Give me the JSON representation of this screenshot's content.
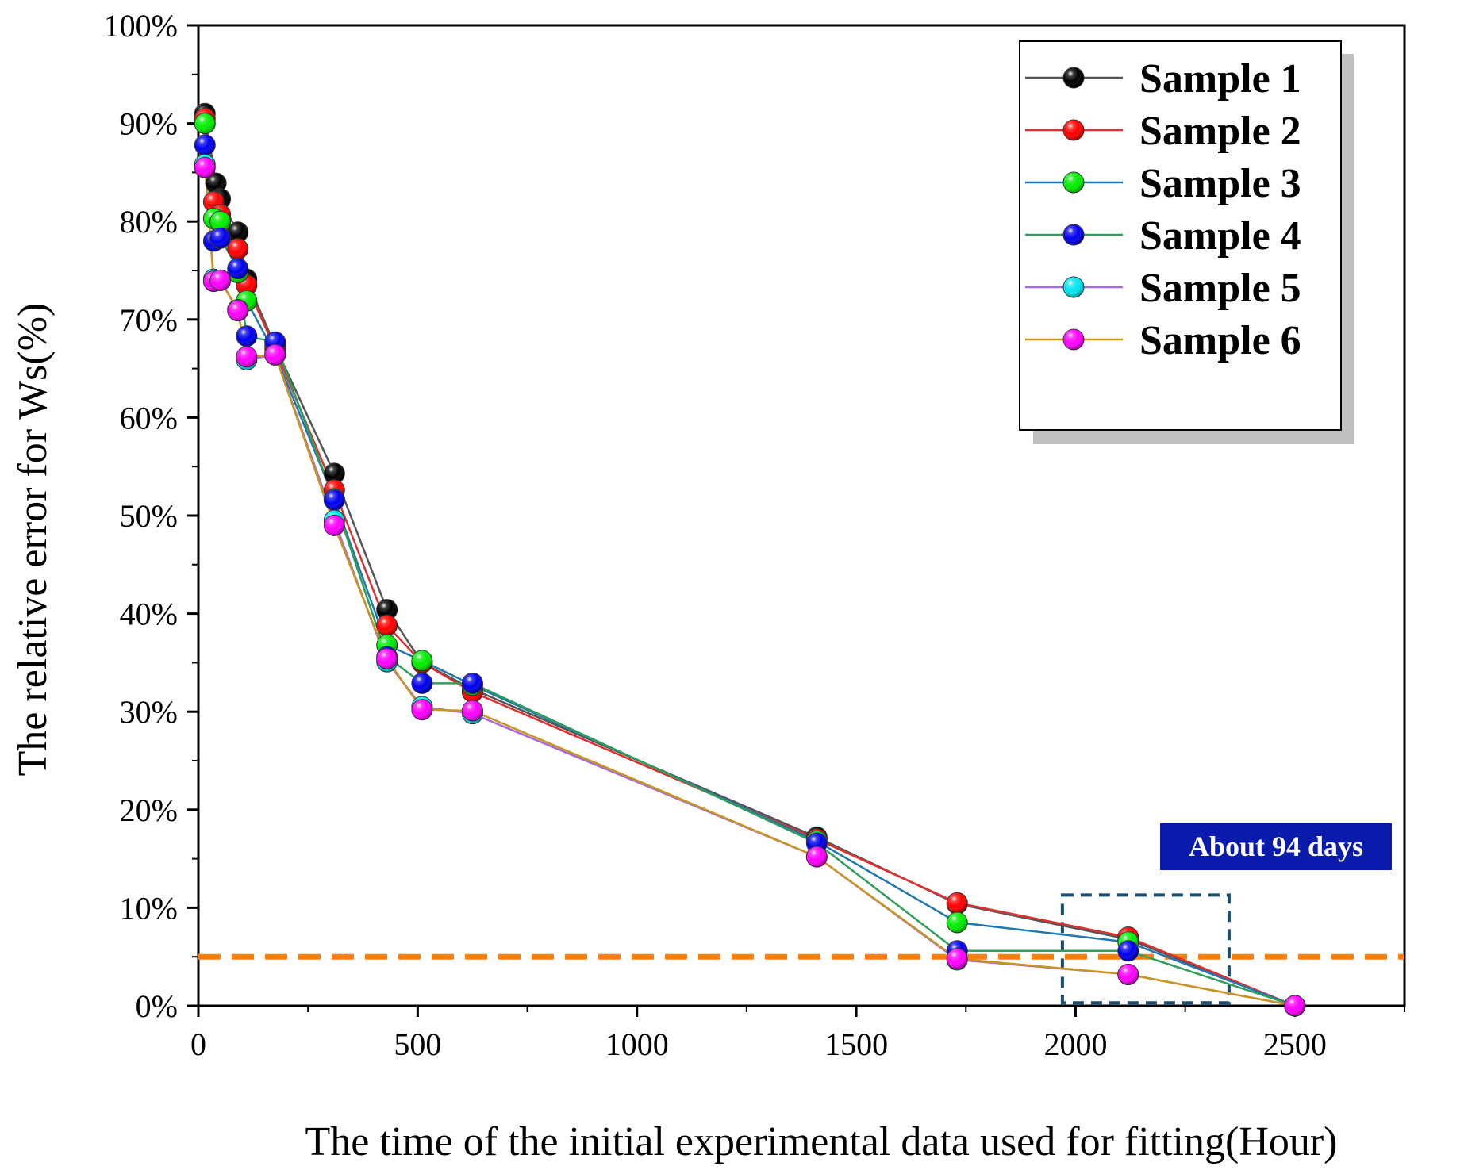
{
  "chart_data": {
    "type": "line",
    "title": "",
    "xlabel": "The time of the initial experimental data used for fitting(Hour)",
    "ylabel": "The relative error for Ws(%)",
    "xlim": [
      0,
      2750
    ],
    "ylim": [
      0,
      100
    ],
    "xticks": [
      0,
      500,
      1000,
      1500,
      2000,
      2500
    ],
    "xtick_labels": [
      "0",
      "500",
      "1000",
      "1500",
      "2000",
      "2500"
    ],
    "yticks": [
      0,
      10,
      20,
      30,
      40,
      50,
      60,
      70,
      80,
      90,
      100
    ],
    "ytick_labels": [
      "0%",
      "10%",
      "20%",
      "30%",
      "40%",
      "50%",
      "60%",
      "70%",
      "80%",
      "90%",
      "100%"
    ],
    "legend_position": "top-right",
    "grid": false,
    "threshold_line": {
      "y": 5,
      "color": "#FF7F0E",
      "style": "dashed"
    },
    "annotation": {
      "text": "About 94 days",
      "color": "#0A1AAA",
      "box_x_range": [
        1970,
        2350
      ],
      "box_y_range": [
        0.3,
        11.3
      ]
    },
    "series": [
      {
        "name": "Sample 1",
        "marker_color": "#000000",
        "line_color": "#555555",
        "x": [
          15,
          40,
          50,
          90,
          110,
          175,
          310,
          430,
          510,
          625,
          1410,
          1730,
          2120,
          2500
        ],
        "y": [
          91.0,
          83.9,
          82.3,
          78.9,
          74.1,
          67.3,
          54.3,
          40.4,
          35.0,
          32.3,
          17.2,
          10.4,
          6.8,
          0.0
        ]
      },
      {
        "name": "Sample 2",
        "marker_color": "#FF0000",
        "line_color": "#E03030",
        "x": [
          15,
          35,
          50,
          90,
          110,
          175,
          310,
          430,
          510,
          625,
          1410,
          1730,
          2120,
          2500
        ],
        "y": [
          90.5,
          82.0,
          80.7,
          77.2,
          73.5,
          67.0,
          52.6,
          38.8,
          35.0,
          32.0,
          17.0,
          10.5,
          7.0,
          0.0
        ]
      },
      {
        "name": "Sample 3",
        "marker_color": "#00EE00",
        "line_color": "#1F77B4",
        "x": [
          15,
          35,
          50,
          90,
          110,
          175,
          310,
          430,
          510,
          625,
          1410,
          1730,
          2120,
          2500
        ],
        "y": [
          90.0,
          80.3,
          80.0,
          74.8,
          71.9,
          66.5,
          51.7,
          36.8,
          35.2,
          32.7,
          16.8,
          8.5,
          6.5,
          0.0
        ]
      },
      {
        "name": "Sample 4",
        "marker_color": "#0000EE",
        "line_color": "#2E9E5A",
        "x": [
          15,
          35,
          50,
          90,
          110,
          175,
          310,
          430,
          510,
          625,
          1410,
          1730,
          2120,
          2500
        ],
        "y": [
          87.8,
          78.0,
          78.3,
          75.2,
          68.3,
          67.7,
          51.6,
          35.6,
          32.9,
          32.9,
          16.6,
          5.6,
          5.6,
          0.0
        ]
      },
      {
        "name": "Sample 5",
        "marker_color": "#00E5EE",
        "line_color": "#A66BD6",
        "x": [
          15,
          35,
          50,
          90,
          110,
          175,
          310,
          430,
          510,
          625,
          1410,
          1730,
          2120,
          2500
        ],
        "y": [
          85.8,
          74.1,
          74.0,
          71.0,
          65.9,
          66.4,
          49.5,
          35.1,
          30.5,
          29.8,
          15.2,
          4.7,
          3.2,
          0.0
        ]
      },
      {
        "name": "Sample 6",
        "marker_color": "#FF00FF",
        "line_color": "#C8961E",
        "x": [
          15,
          35,
          50,
          90,
          110,
          175,
          310,
          430,
          510,
          625,
          1410,
          1730,
          2120,
          2500
        ],
        "y": [
          85.5,
          73.9,
          74.0,
          70.9,
          66.2,
          66.4,
          49.0,
          35.4,
          30.2,
          30.1,
          15.2,
          4.8,
          3.2,
          0.0
        ]
      }
    ]
  }
}
